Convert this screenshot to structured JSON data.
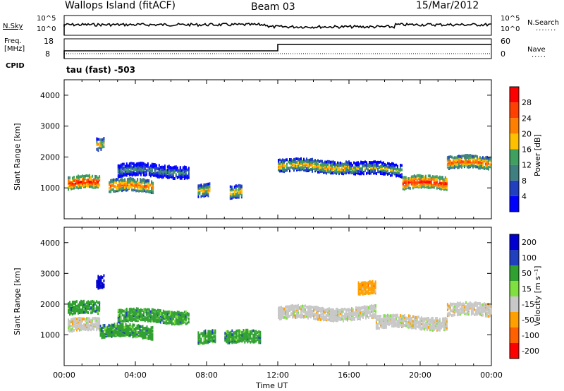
{
  "header": {
    "station": "Wallops Island (fitACF)",
    "beam": "Beam 03",
    "date": "15/Mar/2012"
  },
  "top_panels": {
    "nsky_label": "N.Sky",
    "nsky_ticks": [
      "10^5",
      "10^0"
    ],
    "nsearch_label": "N.Search",
    "nsearch_ticks": [
      "10^5",
      "10^0"
    ],
    "freq_label": "Freq.",
    "freq_unit": "[MHz]",
    "freq_ticks": [
      "18",
      "8"
    ],
    "nave_label": "Nave",
    "nave_ticks": [
      "60",
      "0"
    ],
    "cpid_label": "CPID",
    "cpid_value": "tau (fast) -503"
  },
  "colors": {
    "power": [
      "#0000ff",
      "#2040c0",
      "#3f7f7f",
      "#40a060",
      "#ffc000",
      "#ff8000",
      "#ff4000",
      "#ff0000"
    ],
    "velocity": [
      "#ff0000",
      "#ff6000",
      "#ffa000",
      "#c8c8c8",
      "#80e040",
      "#30a030",
      "#2040c0",
      "#0000d0"
    ]
  },
  "chart_data": [
    {
      "type": "heatmap",
      "name_hint": "power",
      "title": "",
      "xlabel": "Time UT",
      "ylabel": "Slant Range [km]",
      "x_ticks": [
        "00:00",
        "04:00",
        "08:00",
        "12:00",
        "16:00",
        "20:00",
        "00:00"
      ],
      "y_ticks": [
        1000,
        2000,
        3000,
        4000
      ],
      "xlim_hours": [
        0,
        24
      ],
      "ylim_km": [
        0,
        4500
      ],
      "colorbar": {
        "label": "Power [dB]",
        "ticks": [
          4,
          8,
          12,
          16,
          20,
          24,
          28
        ]
      },
      "echo_bands": [
        {
          "t_start": 0.2,
          "t_end": 2.0,
          "range_km": 1150,
          "power_db": 26
        },
        {
          "t_start": 1.8,
          "t_end": 2.2,
          "range_km": 2400,
          "power_db": 18
        },
        {
          "t_start": 2.5,
          "t_end": 5.0,
          "range_km": 1050,
          "power_db": 22
        },
        {
          "t_start": 3.0,
          "t_end": 7.0,
          "range_km": 1550,
          "power_db": 10
        },
        {
          "t_start": 7.5,
          "t_end": 8.2,
          "range_km": 900,
          "power_db": 20
        },
        {
          "t_start": 9.3,
          "t_end": 10.0,
          "range_km": 850,
          "power_db": 20
        },
        {
          "t_start": 12.0,
          "t_end": 16.0,
          "range_km": 1700,
          "power_db": 20
        },
        {
          "t_start": 16.0,
          "t_end": 19.0,
          "range_km": 1600,
          "power_db": 16
        },
        {
          "t_start": 19.0,
          "t_end": 21.5,
          "range_km": 1150,
          "power_db": 26
        },
        {
          "t_start": 21.5,
          "t_end": 24.0,
          "range_km": 1800,
          "power_db": 22
        }
      ]
    },
    {
      "type": "heatmap",
      "name_hint": "velocity",
      "title": "",
      "xlabel": "Time UT",
      "ylabel": "Slant Range [km]",
      "x_ticks": [
        "00:00",
        "04:00",
        "08:00",
        "12:00",
        "16:00",
        "20:00",
        "00:00"
      ],
      "y_ticks": [
        1000,
        2000,
        3000,
        4000
      ],
      "xlim_hours": [
        0,
        24
      ],
      "ylim_km": [
        0,
        4500
      ],
      "colorbar": {
        "label": "Velocity [m s⁻¹]",
        "ticks": [
          -200,
          -100,
          -50,
          -15,
          15,
          50,
          100,
          200
        ]
      },
      "echo_bands": [
        {
          "t_start": 0.2,
          "t_end": 2.0,
          "range_km": 1300,
          "velocity": 0
        },
        {
          "t_start": 0.2,
          "t_end": 2.0,
          "range_km": 1850,
          "velocity": 40
        },
        {
          "t_start": 1.8,
          "t_end": 2.2,
          "range_km": 2700,
          "velocity": 200
        },
        {
          "t_start": 2.0,
          "t_end": 5.0,
          "range_km": 1100,
          "velocity": 60
        },
        {
          "t_start": 3.0,
          "t_end": 7.0,
          "range_km": 1600,
          "velocity": 40
        },
        {
          "t_start": 7.5,
          "t_end": 8.5,
          "range_km": 900,
          "velocity": 40
        },
        {
          "t_start": 9.0,
          "t_end": 11.0,
          "range_km": 900,
          "velocity": 30
        },
        {
          "t_start": 12.0,
          "t_end": 17.5,
          "range_km": 1700,
          "velocity": 0
        },
        {
          "t_start": 16.5,
          "t_end": 17.5,
          "range_km": 2500,
          "velocity": -50
        },
        {
          "t_start": 17.5,
          "t_end": 21.5,
          "range_km": 1400,
          "velocity": 0
        },
        {
          "t_start": 21.5,
          "t_end": 24.0,
          "range_km": 1800,
          "velocity": 0
        }
      ]
    }
  ]
}
